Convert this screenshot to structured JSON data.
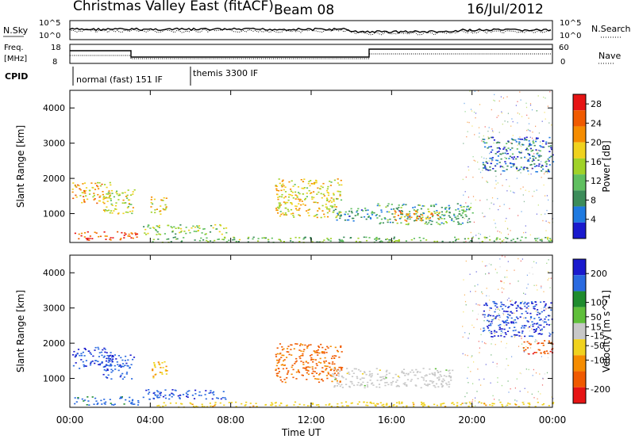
{
  "header": {
    "title": "Christmas Valley East (fitACF)",
    "beam": "Beam 08",
    "date": "16/Jul/2012"
  },
  "aux_panels": {
    "nsky_label": "N.Sky",
    "nsky_ticks": [
      "10^5",
      "10^0"
    ],
    "nsearch_label": "N.Search",
    "nsearch_ticks": [
      "10^5",
      "10^0"
    ],
    "freq_label_1": "Freq.",
    "freq_label_2": "[MHz]",
    "freq_ticks": [
      "18",
      "8"
    ],
    "nave_label": "Nave",
    "nave_ticks": [
      "60",
      "0"
    ],
    "cpid_label": "CPID",
    "cpid_segments": [
      "normal (fast) 151 IF",
      "themis 3300 IF"
    ]
  },
  "colors": {
    "power_scale": [
      "#1a1acd",
      "#1f7ae0",
      "#3c8c5a",
      "#5fbf5f",
      "#a0d228",
      "#f0d21e",
      "#f58c00",
      "#f05a00",
      "#e61414"
    ],
    "velocity_scale": [
      "#1a1acd",
      "#2a6ae0",
      "#1f8c2e",
      "#5fbf3a",
      "#c8c8c8",
      "#f0d21e",
      "#f58c00",
      "#f05a00",
      "#e61414"
    ]
  },
  "chart_data": [
    {
      "type": "heatmap",
      "panel": "power",
      "ylabel": "Slant Range [km]",
      "xlabel": "Time UT",
      "x_ticks": [
        "00:00",
        "04:00",
        "08:00",
        "12:00",
        "16:00",
        "20:00",
        "00:00"
      ],
      "x_range_hours": [
        0,
        24
      ],
      "y_ticks": [
        1000,
        2000,
        3000,
        4000
      ],
      "ylim": [
        180,
        4500
      ],
      "colorbar_label": "Power [dB]",
      "colorbar_ticks": [
        4,
        8,
        12,
        16,
        20,
        24,
        28
      ],
      "colorbar_range": [
        0,
        30
      ],
      "regions": [
        {
          "t": [
            0.1,
            2.0
          ],
          "r": [
            1300,
            1900
          ],
          "v": 20
        },
        {
          "t": [
            1.6,
            3.2
          ],
          "r": [
            1000,
            1700
          ],
          "v": 16
        },
        {
          "t": [
            4.0,
            4.8
          ],
          "r": [
            1000,
            1500
          ],
          "v": 18
        },
        {
          "t": [
            0.2,
            3.4
          ],
          "r": [
            260,
            500
          ],
          "v": 26
        },
        {
          "t": [
            3.6,
            7.8
          ],
          "r": [
            420,
            700
          ],
          "v": 14
        },
        {
          "t": [
            10.2,
            13.5
          ],
          "r": [
            900,
            2000
          ],
          "v": 18
        },
        {
          "t": [
            13.0,
            15.0
          ],
          "r": [
            800,
            1200
          ],
          "v": 8
        },
        {
          "t": [
            15.0,
            20.0
          ],
          "r": [
            700,
            1300
          ],
          "v": 10
        },
        {
          "t": [
            16.0,
            18.5
          ],
          "r": [
            800,
            1100
          ],
          "v": 22
        },
        {
          "t": [
            20.5,
            24.0
          ],
          "r": [
            2200,
            3200
          ],
          "v": 6
        },
        {
          "t": [
            4.0,
            24.0
          ],
          "r": [
            200,
            350
          ],
          "v": 12
        }
      ]
    },
    {
      "type": "heatmap",
      "panel": "velocity",
      "ylabel": "Slant Range [km]",
      "xlabel": "Time UT",
      "x_ticks": [
        "00:00",
        "04:00",
        "08:00",
        "12:00",
        "16:00",
        "20:00",
        "00:00"
      ],
      "x_range_hours": [
        0,
        24
      ],
      "y_ticks": [
        1000,
        2000,
        3000,
        4000
      ],
      "ylim": [
        180,
        4500
      ],
      "colorbar_label": "Velocity [m s^-1]",
      "colorbar_ticks": [
        200,
        100,
        50,
        15,
        -15,
        -50,
        -100,
        -200
      ],
      "colorbar_range": [
        250,
        -250
      ],
      "regions": [
        {
          "t": [
            0.1,
            2.0
          ],
          "r": [
            1300,
            1900
          ],
          "v": 200
        },
        {
          "t": [
            1.6,
            3.2
          ],
          "r": [
            1000,
            1700
          ],
          "v": 180
        },
        {
          "t": [
            4.0,
            4.8
          ],
          "r": [
            1000,
            1500
          ],
          "v": -80
        },
        {
          "t": [
            0.2,
            3.4
          ],
          "r": [
            260,
            500
          ],
          "v": 160
        },
        {
          "t": [
            3.6,
            7.8
          ],
          "r": [
            420,
            700
          ],
          "v": 180
        },
        {
          "t": [
            10.2,
            13.5
          ],
          "r": [
            900,
            2000
          ],
          "v": -150
        },
        {
          "t": [
            13.0,
            19.0
          ],
          "r": [
            750,
            1300
          ],
          "v": 0
        },
        {
          "t": [
            20.5,
            24.0
          ],
          "r": [
            2200,
            3200
          ],
          "v": 200
        },
        {
          "t": [
            22.5,
            24.0
          ],
          "r": [
            1700,
            2100
          ],
          "v": -180
        },
        {
          "t": [
            4.0,
            24.0
          ],
          "r": [
            200,
            350
          ],
          "v": -60
        }
      ]
    }
  ]
}
